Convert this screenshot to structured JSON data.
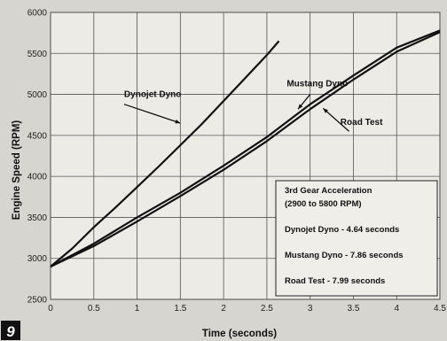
{
  "figure_number": "9",
  "chart_data": {
    "type": "line",
    "title": "",
    "xlabel": "Time (seconds)",
    "ylabel": "Engine Speed (RPM)",
    "xlim": [
      0,
      4.5
    ],
    "ylim": [
      2500,
      6000
    ],
    "x_ticks": [
      "0",
      "0.5",
      "1",
      "1.5",
      "2",
      "2.5",
      "3",
      "3.5",
      "4",
      "4.5"
    ],
    "y_ticks": [
      "2500",
      "3000",
      "3500",
      "4000",
      "4500",
      "5000",
      "5500",
      "6000"
    ],
    "grid": true,
    "series": [
      {
        "name": "Dynojet Dyno",
        "color": "#111111",
        "x": [
          0,
          0.25,
          0.5,
          0.75,
          1.0,
          1.25,
          1.5,
          1.75,
          2.0,
          2.25,
          2.5,
          2.64
        ],
        "y": [
          2900,
          3120,
          3380,
          3620,
          3870,
          4120,
          4380,
          4640,
          4920,
          5200,
          5480,
          5650
        ]
      },
      {
        "name": "Mustang Dyno",
        "color": "#111111",
        "x": [
          0,
          0.5,
          1.0,
          1.5,
          2.0,
          2.5,
          3.0,
          3.5,
          4.0,
          4.5
        ],
        "y": [
          2900,
          3180,
          3500,
          3800,
          4130,
          4480,
          4880,
          5230,
          5570,
          5780
        ]
      },
      {
        "name": "Road Test",
        "color": "#111111",
        "x": [
          0,
          0.5,
          1.0,
          1.5,
          2.0,
          2.5,
          3.0,
          3.5,
          4.0,
          4.5
        ],
        "y": [
          2900,
          3150,
          3450,
          3760,
          4080,
          4430,
          4820,
          5180,
          5520,
          5760
        ]
      }
    ],
    "annotations": [
      {
        "text": "Dynojet Dyno",
        "x": 0.85,
        "y": 4970
      },
      {
        "text": "Mustang Dyno",
        "x": 2.73,
        "y": 5100
      },
      {
        "text": "Road Test",
        "x": 3.35,
        "y": 4630
      }
    ],
    "legend_box": {
      "lines": [
        "3rd Gear Acceleration",
        "(2900 to 5800 RPM)",
        "Dynojet Dyno - 4.64 seconds",
        "Mustang Dyno - 7.86 seconds",
        "Road Test - 7.99 seconds"
      ]
    }
  }
}
